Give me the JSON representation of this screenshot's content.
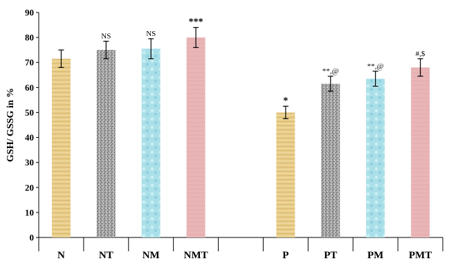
{
  "chart_data": {
    "type": "bar",
    "ylabel": "GSH/ GSSG in %",
    "xlabel": "",
    "ylim": [
      0,
      90
    ],
    "yticks": [
      0,
      10,
      20,
      30,
      40,
      50,
      60,
      70,
      80,
      90
    ],
    "grid": false,
    "categories": [
      "N",
      "NT",
      "NM",
      "NMT",
      "",
      "P",
      "PT",
      "PM",
      "PMT"
    ],
    "values": [
      71.5,
      75,
      75.5,
      80,
      null,
      50,
      61.5,
      63.5,
      68
    ],
    "errors": [
      3.5,
      3.5,
      4,
      4,
      null,
      2.5,
      3,
      3,
      3.5
    ],
    "annotations": [
      "",
      "NS",
      "NS",
      "***",
      "",
      "*",
      "**,@",
      "**,@",
      "#,$"
    ],
    "colors": {
      "N": "#e8cd8a",
      "NT": "#9c9c9c",
      "NM": "#a9dfe8",
      "NMT": "#e9b5b7",
      "P": "#e8cd8a",
      "PT": "#9c9c9c",
      "PM": "#a9dfe8",
      "PMT": "#e9b5b7"
    }
  }
}
